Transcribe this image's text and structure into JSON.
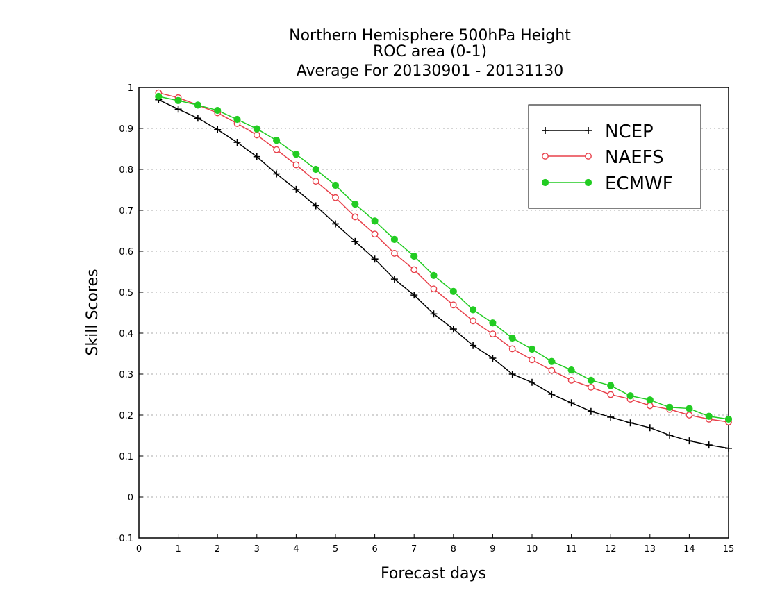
{
  "chart_data": {
    "type": "line",
    "title": [
      "Northern Hemisphere 500hPa Height",
      "ROC area (0-1)",
      "Average For 20130901 - 20131130"
    ],
    "xlabel": "Forecast days",
    "ylabel": "Skill Scores",
    "xlim": [
      0,
      15
    ],
    "ylim": [
      -0.1,
      1
    ],
    "xticks": [
      0,
      1,
      2,
      3,
      4,
      5,
      6,
      7,
      8,
      9,
      10,
      11,
      12,
      13,
      14,
      15
    ],
    "xtick_labels": [
      "0",
      "1",
      "2",
      "3",
      "4",
      "5",
      "6",
      "7",
      "8",
      "9",
      "10",
      "11",
      "12",
      "13",
      "14",
      "15"
    ],
    "yticks": [
      -0.1,
      0,
      0.1,
      0.2,
      0.3,
      0.4,
      0.5,
      0.6,
      0.7,
      0.8,
      0.9,
      1
    ],
    "ytick_labels": [
      "-0.1",
      "0",
      "0.1",
      "0.2",
      "0.3",
      "0.4",
      "0.5",
      "0.6",
      "0.7",
      "0.8",
      "0.9",
      "1"
    ],
    "grid": "horizontal dotted",
    "legend": "top-right",
    "x": [
      0.5,
      1,
      1.5,
      2,
      2.5,
      3,
      3.5,
      4,
      4.5,
      5,
      5.5,
      6,
      6.5,
      7,
      7.5,
      8,
      8.5,
      9,
      9.5,
      10,
      10.5,
      11,
      11.5,
      12,
      12.5,
      13,
      13.5,
      14,
      14.5,
      15
    ],
    "series": [
      {
        "name": "NCEP",
        "color": "#000000",
        "marker": "plus",
        "values": [
          0.97,
          0.947,
          0.925,
          0.897,
          0.866,
          0.831,
          0.789,
          0.751,
          0.711,
          0.667,
          0.624,
          0.581,
          0.532,
          0.493,
          0.447,
          0.41,
          0.37,
          0.339,
          0.3,
          0.28,
          0.251,
          0.23,
          0.209,
          0.195,
          0.181,
          0.169,
          0.151,
          0.137,
          0.127,
          0.119
        ]
      },
      {
        "name": "NAEFS",
        "color": "#e8404a",
        "marker": "open-circle",
        "values": [
          0.987,
          0.975,
          0.957,
          0.938,
          0.912,
          0.884,
          0.848,
          0.811,
          0.771,
          0.731,
          0.684,
          0.642,
          0.595,
          0.555,
          0.508,
          0.469,
          0.43,
          0.398,
          0.362,
          0.335,
          0.309,
          0.285,
          0.268,
          0.25,
          0.239,
          0.223,
          0.214,
          0.2,
          0.19,
          0.183
        ]
      },
      {
        "name": "ECMWF",
        "color": "#22cc22",
        "marker": "filled-circle",
        "values": [
          0.978,
          0.968,
          0.957,
          0.944,
          0.922,
          0.899,
          0.871,
          0.837,
          0.8,
          0.761,
          0.715,
          0.674,
          0.629,
          0.588,
          0.541,
          0.502,
          0.457,
          0.425,
          0.388,
          0.361,
          0.331,
          0.31,
          0.285,
          0.272,
          0.247,
          0.237,
          0.219,
          0.216,
          0.197,
          0.19
        ]
      }
    ]
  }
}
